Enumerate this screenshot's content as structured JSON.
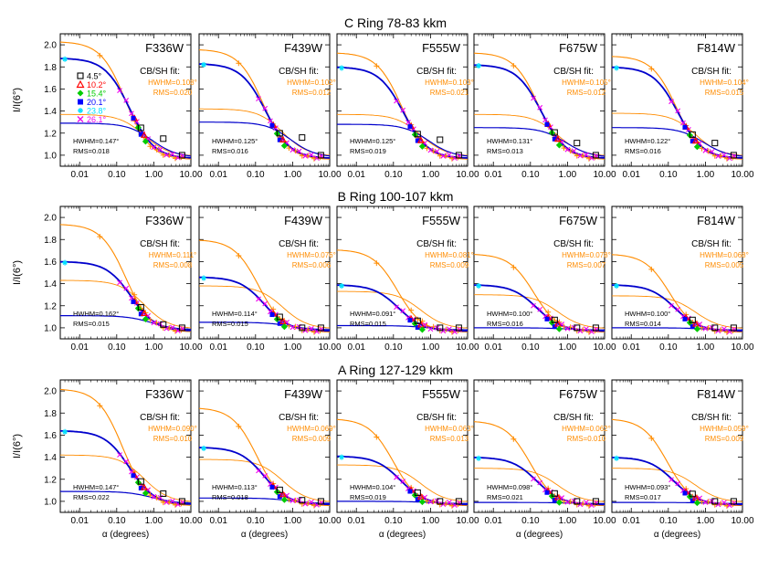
{
  "colors": {
    "cbsh": "#ff8c00",
    "sh": "#0000cc",
    "magenta": "#ee00ee",
    "cyan": "#00e0ff",
    "red": "#ff0000",
    "green": "#00cc00",
    "blue": "#0000ff",
    "black": "#000000"
  },
  "labels": {
    "ylabel": "I/I(6°)",
    "xlabel": "α (degrees)",
    "fit_title": "CB/SH fit:"
  },
  "legend": [
    {
      "label": "4.5°",
      "marker": "square",
      "color": "#000000"
    },
    {
      "label": "10.2°",
      "marker": "triangle",
      "color": "#ff0000"
    },
    {
      "label": "15.4°",
      "marker": "diamond",
      "color": "#00cc00"
    },
    {
      "label": "20.1°",
      "marker": "filled-square",
      "color": "#0000ff"
    },
    {
      "label": "23.8°",
      "marker": "star",
      "color": "#00e0ff"
    },
    {
      "label": "26.1°",
      "marker": "x",
      "color": "#ee00ee"
    }
  ],
  "chart_data": {
    "type": "scatter",
    "x_scale": "log",
    "xlim": [
      0.003,
      10
    ],
    "ylim": [
      0.9,
      2.1
    ],
    "x_ticks": [
      "0.01",
      "0.10",
      "1.00",
      "10.00"
    ],
    "y_ticks": [
      "1.0",
      "1.2",
      "1.4",
      "1.6",
      "1.8",
      "2.0"
    ],
    "x_tick_values": [
      0.01,
      0.1,
      1,
      10
    ],
    "y_tick_values": [
      1.0,
      1.2,
      1.4,
      1.6,
      1.8,
      2.0
    ],
    "rows": [
      {
        "title": "C Ring 78-83 kkm",
        "panels": [
          {
            "filter": "F336W",
            "cbsh_hwhm": "HWHM=0.108°",
            "cbsh_rms": "RMS=0.020",
            "sh_hwhm": "HWHM=0.147°",
            "sh_rms": "RMS=0.018",
            "cbsh_peak": 2.03,
            "sh_peak": 1.88,
            "sh_flat": 1.29,
            "cbsh_flat": 1.37
          },
          {
            "filter": "F439W",
            "cbsh_hwhm": "HWHM=0.102°",
            "cbsh_rms": "RMS=0.012",
            "sh_hwhm": "HWHM=0.125°",
            "sh_rms": "RMS=0.016",
            "cbsh_peak": 1.96,
            "sh_peak": 1.83,
            "sh_flat": 1.3,
            "cbsh_flat": 1.42
          },
          {
            "filter": "F555W",
            "cbsh_hwhm": "HWHM=0.103°",
            "cbsh_rms": "RMS=0.021",
            "sh_hwhm": "HWHM=0.125°",
            "sh_rms": "RMS=0.019",
            "cbsh_peak": 1.93,
            "sh_peak": 1.8,
            "sh_flat": 1.28,
            "cbsh_flat": 1.37
          },
          {
            "filter": "F675W",
            "cbsh_hwhm": "HWHM=0.105°",
            "cbsh_rms": "RMS=0.012",
            "sh_hwhm": "HWHM=0.131°",
            "sh_rms": "RMS=0.013",
            "cbsh_peak": 1.93,
            "sh_peak": 1.82,
            "sh_flat": 1.25,
            "cbsh_flat": 1.37
          },
          {
            "filter": "F814W",
            "cbsh_hwhm": "HWHM=0.104°",
            "cbsh_rms": "RMS=0.015",
            "sh_hwhm": "HWHM=0.122°",
            "sh_rms": "RMS=0.016",
            "cbsh_peak": 1.9,
            "sh_peak": 1.8,
            "sh_flat": 1.25,
            "cbsh_flat": 1.38
          }
        ]
      },
      {
        "title": "B Ring 100-107 kkm",
        "panels": [
          {
            "filter": "F336W",
            "cbsh_hwhm": "HWHM=0.111°",
            "cbsh_rms": "RMS=0.008",
            "sh_hwhm": "HWHM=0.162°",
            "sh_rms": "RMS=0.015",
            "cbsh_peak": 1.94,
            "sh_peak": 1.6,
            "sh_flat": 1.11,
            "cbsh_flat": 1.43
          },
          {
            "filter": "F439W",
            "cbsh_hwhm": "HWHM=0.076°",
            "cbsh_rms": "RMS=0.006",
            "sh_hwhm": "HWHM=0.114°",
            "sh_rms": "RMS=0.015",
            "cbsh_peak": 1.8,
            "sh_peak": 1.46,
            "sh_flat": 1.05,
            "cbsh_flat": 1.38
          },
          {
            "filter": "F555W",
            "cbsh_hwhm": "HWHM=0.081°",
            "cbsh_rms": "RMS=0.009",
            "sh_hwhm": "HWHM=0.091°",
            "sh_rms": "RMS=0.015",
            "cbsh_peak": 1.71,
            "sh_peak": 1.39,
            "sh_flat": 1.02,
            "cbsh_flat": 1.33
          },
          {
            "filter": "F675W",
            "cbsh_hwhm": "HWHM=0.078°",
            "cbsh_rms": "RMS=0.007",
            "sh_hwhm": "HWHM=0.100°",
            "sh_rms": "RMS=0.016",
            "cbsh_peak": 1.67,
            "sh_peak": 1.39,
            "sh_flat": 1.0,
            "cbsh_flat": 1.3
          },
          {
            "filter": "F814W",
            "cbsh_hwhm": "HWHM=0.068°",
            "cbsh_rms": "RMS=0.005",
            "sh_hwhm": "HWHM=0.100°",
            "sh_rms": "RMS=0.014",
            "cbsh_peak": 1.67,
            "sh_peak": 1.39,
            "sh_flat": 1.0,
            "cbsh_flat": 1.29
          }
        ]
      },
      {
        "title": "A Ring 127-129 kkm",
        "panels": [
          {
            "filter": "F336W",
            "cbsh_hwhm": "HWHM=0.090°",
            "cbsh_rms": "RMS=0.010",
            "sh_hwhm": "HWHM=0.147°",
            "sh_rms": "RMS=0.022",
            "cbsh_peak": 2.02,
            "sh_peak": 1.64,
            "sh_flat": 1.09,
            "cbsh_flat": 1.42
          },
          {
            "filter": "F439W",
            "cbsh_hwhm": "HWHM=0.069°",
            "cbsh_rms": "RMS=0.009",
            "sh_hwhm": "HWHM=0.113°",
            "sh_rms": "RMS=0.018",
            "cbsh_peak": 1.85,
            "sh_peak": 1.49,
            "sh_flat": 1.03,
            "cbsh_flat": 1.38
          },
          {
            "filter": "F555W",
            "cbsh_hwhm": "HWHM=0.063°",
            "cbsh_rms": "RMS=0.013",
            "sh_hwhm": "HWHM=0.104°",
            "sh_rms": "RMS=0.019",
            "cbsh_peak": 1.75,
            "sh_peak": 1.41,
            "sh_flat": 1.0,
            "cbsh_flat": 1.33
          },
          {
            "filter": "F675W",
            "cbsh_hwhm": "HWHM=0.062°",
            "cbsh_rms": "RMS=0.010",
            "sh_hwhm": "HWHM=0.098°",
            "sh_rms": "RMS=0.021",
            "cbsh_peak": 1.73,
            "sh_peak": 1.4,
            "sh_flat": 0.99,
            "cbsh_flat": 1.3
          },
          {
            "filter": "F814W",
            "cbsh_hwhm": "HWHM=0.059°",
            "cbsh_rms": "RMS=0.009",
            "sh_hwhm": "HWHM=0.093°",
            "sh_rms": "RMS=0.017",
            "cbsh_peak": 1.75,
            "sh_peak": 1.4,
            "sh_flat": 0.99,
            "cbsh_flat": 1.3
          }
        ]
      }
    ]
  }
}
